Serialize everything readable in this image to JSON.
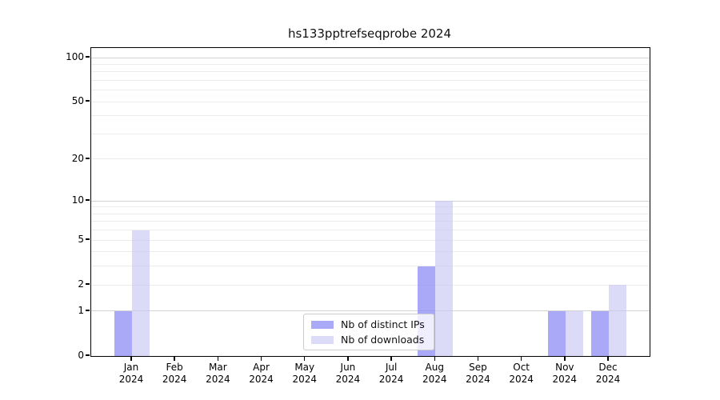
{
  "chart_data": {
    "type": "bar",
    "title": "hs133pptrefseqprobe 2024",
    "categories": [
      "Jan",
      "Feb",
      "Mar",
      "Apr",
      "May",
      "Jun",
      "Jul",
      "Aug",
      "Sep",
      "Oct",
      "Nov",
      "Dec"
    ],
    "x_sublabel": "2024",
    "series": [
      {
        "name": "Nb of distinct IPs",
        "color": "#a9a9f7",
        "fill": "rgba(140,140,245,0.75)",
        "values": [
          1,
          0,
          0,
          0,
          0,
          0,
          0,
          3,
          0,
          0,
          1,
          1
        ]
      },
      {
        "name": "Nb of downloads",
        "color": "#dcdcf9",
        "fill": "rgba(200,200,245,0.65)",
        "values": [
          6,
          0,
          0,
          0,
          0,
          0,
          0,
          10,
          0,
          0,
          1,
          2
        ]
      }
    ],
    "y_scale": "log1p",
    "ylim": [
      0,
      117
    ],
    "y_ticks": [
      0,
      1,
      2,
      5,
      10,
      20,
      50,
      100
    ],
    "y_minor_gridlines": [
      2,
      3,
      4,
      5,
      6,
      7,
      8,
      9,
      20,
      30,
      40,
      50,
      60,
      70,
      80,
      90
    ],
    "y_major_gridlines": [
      1,
      10,
      100
    ],
    "grid": true,
    "legend_position": "bottom-center",
    "xlabel": "",
    "ylabel": ""
  }
}
